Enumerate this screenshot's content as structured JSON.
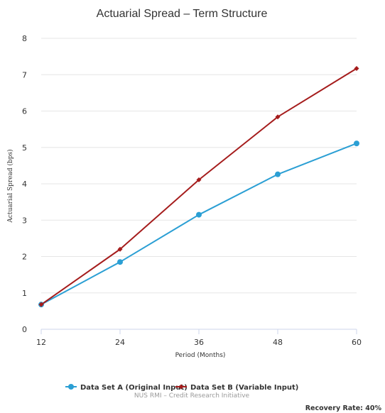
{
  "chart_data": {
    "type": "line",
    "title": "Actuarial Spread – Term Structure",
    "xlabel": "Period (Months)",
    "ylabel": "Actuarial Spread (bps)",
    "x": [
      12,
      24,
      36,
      48,
      60
    ],
    "ylim": [
      0,
      8
    ],
    "yticks": [
      0,
      1,
      2,
      3,
      4,
      5,
      6,
      7,
      8
    ],
    "grid": true,
    "legend_position": "bottom",
    "series": [
      {
        "name": "Data Set A (Original Input)",
        "values": [
          0.68,
          1.85,
          3.15,
          4.26,
          5.11
        ],
        "color": "#2b9fd4",
        "marker": "circle"
      },
      {
        "name": "Data Set B (Variable Input)",
        "values": [
          0.68,
          2.2,
          4.11,
          5.84,
          7.17
        ],
        "color": "#a51c1c",
        "marker": "diamond"
      }
    ]
  },
  "credit": "NUS RMI – Credit Research Initiative",
  "footnote": "Recovery Rate: 40%"
}
